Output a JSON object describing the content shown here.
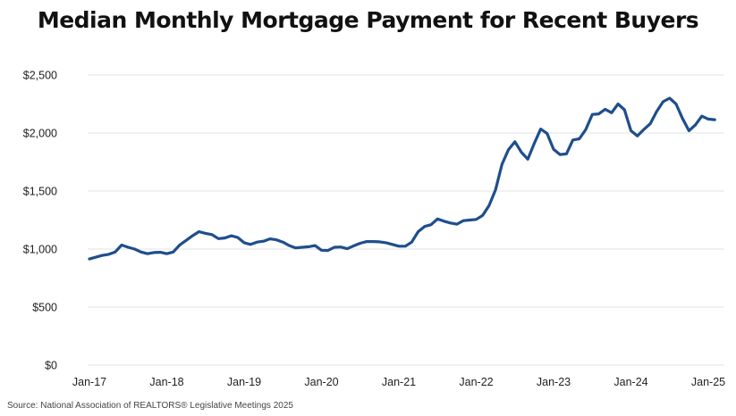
{
  "chart_data": {
    "type": "line",
    "title": "Median Monthly Mortgage Payment for Recent Buyers",
    "source": "Source: National Association of REALTORS® Legislative Meetings 2025",
    "xlabel": "",
    "ylabel": "",
    "ylim": [
      0,
      2500
    ],
    "grid": true,
    "y_ticks": [
      0,
      500,
      1000,
      1500,
      2000,
      2500
    ],
    "y_tick_labels": [
      "$0",
      "$500",
      "$1,000",
      "$1,500",
      "$2,000",
      "$2,500"
    ],
    "x_tick_labels": [
      "Jan-17",
      "Jan-18",
      "Jan-19",
      "Jan-20",
      "Jan-21",
      "Jan-22",
      "Jan-23",
      "Jan-24",
      "Jan-25"
    ],
    "line_color": "#1f4e8c",
    "series": [
      {
        "x": [
          "2017-01",
          "2017-02",
          "2017-03",
          "2017-04",
          "2017-05",
          "2017-06",
          "2017-07",
          "2017-08",
          "2017-09",
          "2017-10",
          "2017-11",
          "2017-12",
          "2018-01",
          "2018-02",
          "2018-03",
          "2018-04",
          "2018-05",
          "2018-06",
          "2018-07",
          "2018-08",
          "2018-09",
          "2018-10",
          "2018-11",
          "2018-12",
          "2019-01",
          "2019-02",
          "2019-03",
          "2019-04",
          "2019-05",
          "2019-06",
          "2019-07",
          "2019-08",
          "2019-09",
          "2019-10",
          "2019-11",
          "2019-12",
          "2020-01",
          "2020-02",
          "2020-03",
          "2020-04",
          "2020-05",
          "2020-06",
          "2020-07",
          "2020-08",
          "2020-09",
          "2020-10",
          "2020-11",
          "2020-12",
          "2021-01",
          "2021-02",
          "2021-03",
          "2021-04",
          "2021-05",
          "2021-06",
          "2021-07",
          "2021-08",
          "2021-09",
          "2021-10",
          "2021-11",
          "2021-12",
          "2022-01",
          "2022-02",
          "2022-03",
          "2022-04",
          "2022-05",
          "2022-06",
          "2022-07",
          "2022-08",
          "2022-09",
          "2022-10",
          "2022-11",
          "2022-12",
          "2023-01",
          "2023-02",
          "2023-03",
          "2023-04",
          "2023-05",
          "2023-06",
          "2023-07",
          "2023-08",
          "2023-09",
          "2023-10",
          "2023-11",
          "2023-12",
          "2024-01",
          "2024-02",
          "2024-03",
          "2024-04",
          "2024-05",
          "2024-06",
          "2024-07",
          "2024-08",
          "2024-09",
          "2024-10",
          "2024-11",
          "2024-12",
          "2025-01",
          "2025-02"
        ],
        "values": [
          915,
          930,
          945,
          955,
          975,
          1035,
          1015,
          1000,
          975,
          960,
          970,
          972,
          960,
          975,
          1035,
          1075,
          1115,
          1150,
          1135,
          1125,
          1090,
          1095,
          1115,
          1100,
          1055,
          1040,
          1060,
          1068,
          1088,
          1080,
          1060,
          1030,
          1010,
          1015,
          1020,
          1030,
          990,
          988,
          1015,
          1018,
          1003,
          1028,
          1050,
          1065,
          1065,
          1062,
          1055,
          1040,
          1025,
          1025,
          1060,
          1150,
          1195,
          1210,
          1260,
          1240,
          1225,
          1215,
          1245,
          1250,
          1255,
          1290,
          1375,
          1510,
          1730,
          1855,
          1925,
          1835,
          1775,
          1910,
          2035,
          1995,
          1860,
          1815,
          1820,
          1940,
          1950,
          2030,
          2160,
          2165,
          2205,
          2175,
          2250,
          2200,
          2020,
          1975,
          2030,
          2080,
          2185,
          2270,
          2300,
          2250,
          2125,
          2020,
          2070,
          2145,
          2120,
          2115
        ]
      }
    ]
  }
}
